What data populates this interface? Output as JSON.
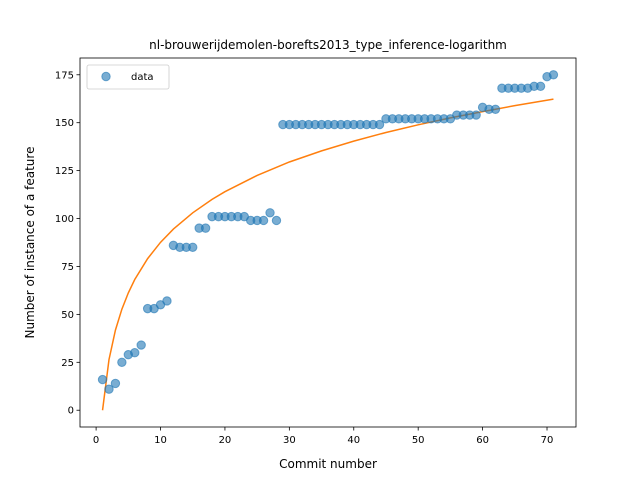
{
  "chart_data": {
    "type": "scatter",
    "title": "nl-brouwerijdemolen-borefts2013_type_inference-logarithm",
    "xlabel": "Commit number",
    "ylabel": "Number of instance of a feature",
    "xlim": [
      -2.5,
      74.5
    ],
    "ylim": [
      -8.75,
      183.75
    ],
    "xticks": [
      0,
      10,
      20,
      30,
      40,
      50,
      60,
      70
    ],
    "yticks": [
      0,
      25,
      50,
      75,
      100,
      125,
      150,
      175
    ],
    "grid": false,
    "legend_position": "top-left",
    "series": [
      {
        "name": "data",
        "kind": "scatter",
        "color": "#1f77b4",
        "x": [
          1,
          2,
          3,
          4,
          5,
          6,
          7,
          8,
          9,
          10,
          11,
          12,
          13,
          14,
          15,
          16,
          17,
          18,
          19,
          20,
          21,
          22,
          23,
          24,
          25,
          26,
          27,
          28,
          29,
          30,
          31,
          32,
          33,
          34,
          35,
          36,
          37,
          38,
          39,
          40,
          41,
          42,
          43,
          44,
          45,
          46,
          47,
          48,
          49,
          50,
          51,
          52,
          53,
          54,
          55,
          56,
          57,
          58,
          59,
          60,
          61,
          62,
          63,
          64,
          65,
          66,
          67,
          68,
          69,
          70,
          71
        ],
        "y": [
          16,
          11,
          14,
          25,
          29,
          30,
          34,
          53,
          53,
          55,
          57,
          86,
          85,
          85,
          85,
          95,
          95,
          101,
          101,
          101,
          101,
          101,
          101,
          99,
          99,
          99,
          103,
          99,
          149,
          149,
          149,
          149,
          149,
          149,
          149,
          149,
          149,
          149,
          149,
          149,
          149,
          149,
          149,
          149,
          152,
          152,
          152,
          152,
          152,
          152,
          152,
          152,
          152,
          152,
          152,
          154,
          154,
          154,
          154,
          158,
          157,
          157,
          168,
          168,
          168,
          168,
          168,
          169,
          169,
          174,
          175
        ]
      },
      {
        "name": "",
        "kind": "line",
        "color": "#ff7f0e",
        "x": [
          1,
          2,
          3,
          4,
          5,
          6,
          8,
          10,
          12,
          15,
          18,
          20,
          25,
          30,
          35,
          40,
          45,
          50,
          55,
          60,
          65,
          71
        ],
        "y": [
          0,
          26.4,
          41.8,
          52.7,
          61.2,
          68.2,
          79.1,
          87.6,
          94.5,
          103.0,
          110.0,
          114.0,
          122.5,
          129.5,
          135.3,
          140.4,
          144.9,
          148.9,
          152.5,
          155.8,
          158.9,
          162.3
        ]
      }
    ]
  }
}
